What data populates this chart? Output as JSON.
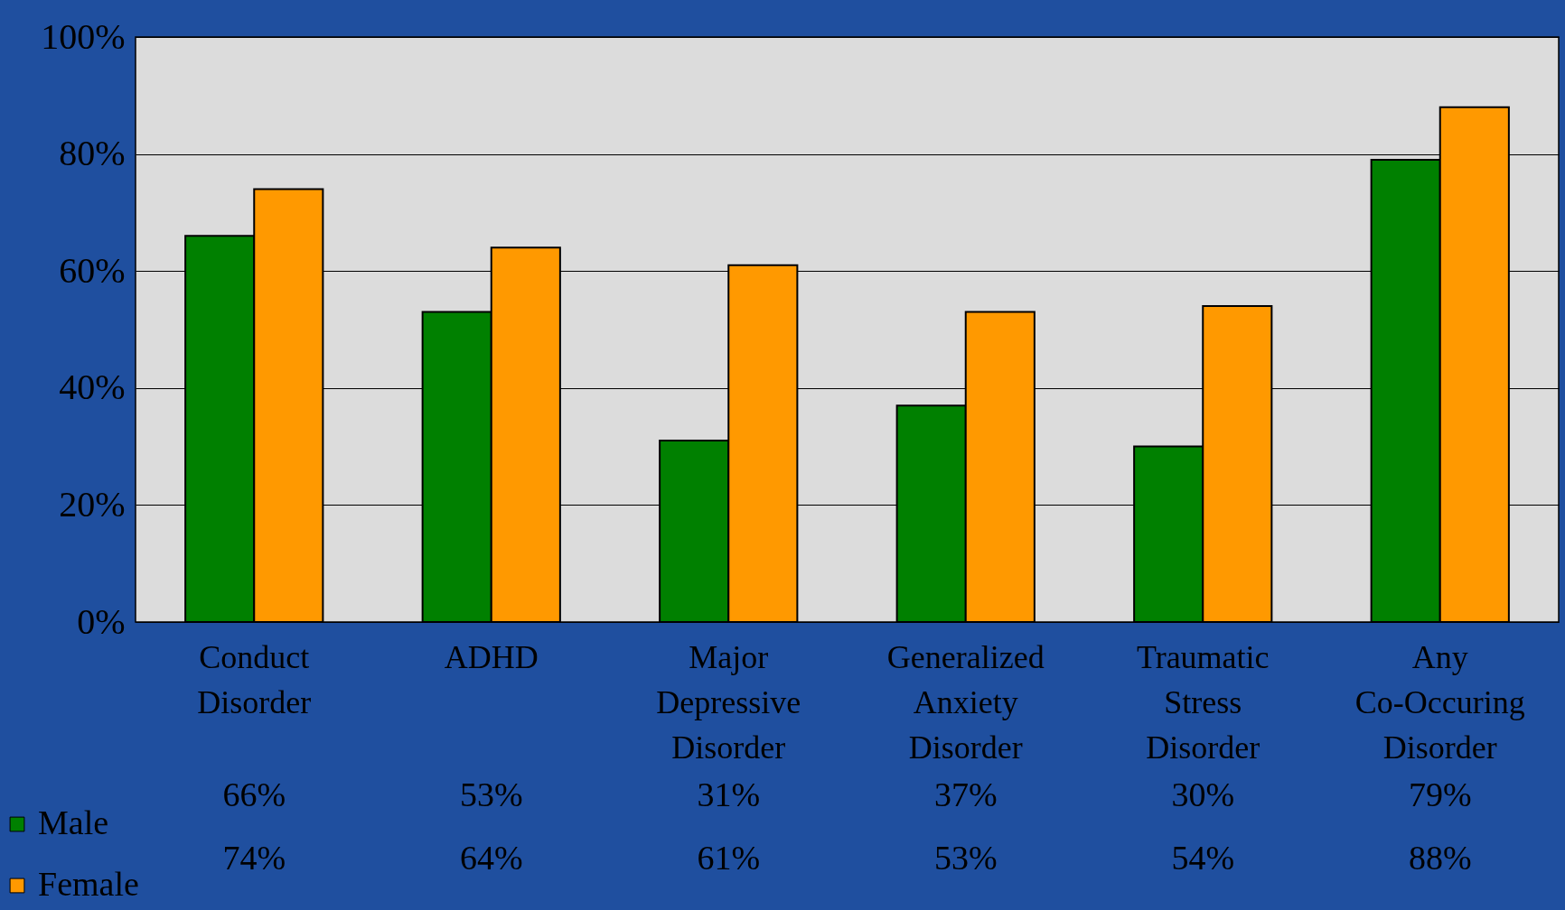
{
  "chart_data": {
    "type": "bar",
    "categories": [
      "Conduct Disorder",
      "ADHD",
      "Major Depressive Disorder",
      "Generalized Anxiety Disorder",
      "Traumatic Stress Disorder",
      "Any Co-Occuring Disorder"
    ],
    "series": [
      {
        "name": "Male",
        "color": "#008000",
        "values": [
          66,
          53,
          31,
          37,
          30,
          79
        ],
        "value_labels": [
          "66%",
          "53%",
          "31%",
          "37%",
          "30%",
          "79%"
        ]
      },
      {
        "name": "Female",
        "color": "#ff9900",
        "values": [
          74,
          64,
          61,
          53,
          54,
          88
        ],
        "value_labels": [
          "74%",
          "64%",
          "61%",
          "53%",
          "54%",
          "88%"
        ]
      }
    ],
    "ylim": [
      0,
      100
    ],
    "yticks": [
      {
        "value": 0,
        "label": "0%"
      },
      {
        "value": 20,
        "label": "20%"
      },
      {
        "value": 40,
        "label": "40%"
      },
      {
        "value": 60,
        "label": "60%"
      },
      {
        "value": 80,
        "label": "80%"
      },
      {
        "value": 100,
        "label": "100%"
      }
    ],
    "grid": "y",
    "legend": "bottom left"
  }
}
